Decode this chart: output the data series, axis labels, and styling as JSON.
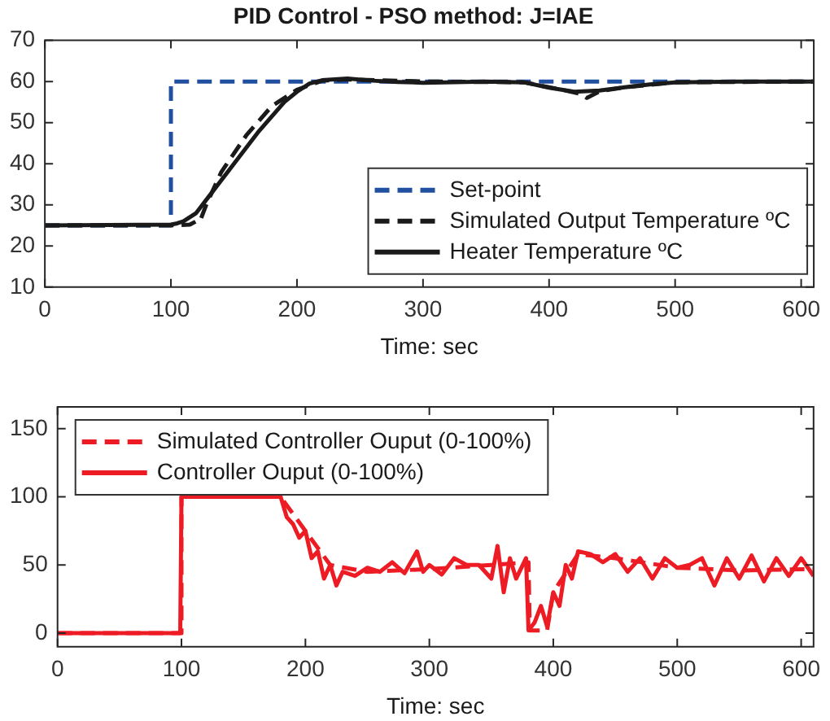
{
  "chart_data": [
    {
      "type": "line",
      "title": "PID Control - PSO method: J=IAE",
      "xlabel": "Time: sec",
      "xlim": [
        0,
        610
      ],
      "xticks": [
        0,
        100,
        200,
        300,
        400,
        500,
        600
      ],
      "ylim": [
        10,
        70
      ],
      "yticks": [
        10,
        20,
        30,
        40,
        50,
        60,
        70
      ],
      "grid": false,
      "legend": "bottom right",
      "series": [
        {
          "name": "Set-point",
          "color": "#2150a0",
          "line_style": "dashed",
          "x": [
            0,
            100,
            100,
            610
          ],
          "values": [
            25,
            25,
            60,
            60
          ]
        },
        {
          "name": "Simulated Output Temperature ºC",
          "color": "#1a1a1a",
          "line_style": "dashed",
          "x": [
            0,
            100,
            115,
            120,
            123,
            128,
            140,
            160,
            180,
            200,
            220,
            240,
            300,
            380,
            410,
            425,
            430,
            440,
            460,
            500,
            610
          ],
          "values": [
            25,
            25,
            25.2,
            26,
            26,
            30,
            38,
            47,
            54,
            58,
            60.2,
            60.5,
            60,
            59.8,
            58,
            57,
            56,
            57.6,
            58.6,
            59.8,
            60
          ]
        },
        {
          "name": "Heater Temperature ºC",
          "color": "#1a1a1a",
          "line_style": "solid",
          "x": [
            0,
            100,
            105,
            110,
            120,
            130,
            150,
            170,
            190,
            200,
            210,
            220,
            240,
            260,
            280,
            300,
            350,
            380,
            400,
            420,
            440,
            460,
            480,
            500,
            550,
            610
          ],
          "values": [
            25,
            25.2,
            25.5,
            26,
            28,
            32,
            40,
            48,
            55,
            57.5,
            59.5,
            60.3,
            60.7,
            60.2,
            59.9,
            59.7,
            60,
            59.8,
            58.5,
            57.5,
            57.8,
            58.6,
            59.3,
            59.8,
            60,
            60
          ]
        }
      ]
    },
    {
      "type": "line",
      "xlabel": "Time: sec",
      "xlim": [
        0,
        610
      ],
      "xticks": [
        0,
        100,
        200,
        300,
        400,
        500,
        600
      ],
      "ylim": [
        -10,
        166
      ],
      "yticks": [
        0,
        50,
        100,
        150
      ],
      "grid": false,
      "legend": "top left",
      "series": [
        {
          "name": "Simulated Controller Ouput (0-100%)",
          "color": "#ed1c24",
          "line_style": "dashed",
          "x": [
            0,
            100,
            100,
            180,
            200,
            220,
            250,
            300,
            350,
            380,
            381,
            395,
            400,
            420,
            450,
            500,
            550,
            610
          ],
          "values": [
            0,
            0,
            100,
            100,
            75,
            50,
            45,
            47,
            50,
            52,
            2,
            2,
            30,
            58,
            55,
            48,
            46,
            47
          ]
        },
        {
          "name": "Controller Ouput (0-100%)",
          "color": "#ed1c24",
          "line_style": "solid",
          "x": [
            0,
            99,
            100,
            180,
            185,
            190,
            195,
            200,
            205,
            210,
            215,
            220,
            225,
            230,
            240,
            250,
            260,
            270,
            280,
            290,
            295,
            300,
            310,
            320,
            330,
            340,
            350,
            355,
            360,
            365,
            370,
            378,
            380,
            385,
            390,
            395,
            400,
            405,
            410,
            415,
            420,
            430,
            440,
            450,
            460,
            470,
            480,
            490,
            500,
            510,
            520,
            530,
            540,
            550,
            560,
            570,
            580,
            590,
            600,
            610
          ],
          "values": [
            0,
            0,
            100,
            100,
            85,
            80,
            70,
            75,
            55,
            60,
            40,
            50,
            35,
            45,
            42,
            48,
            45,
            52,
            44,
            60,
            45,
            50,
            43,
            55,
            50,
            50,
            40,
            64,
            30,
            55,
            40,
            55,
            2,
            8,
            20,
            5,
            30,
            20,
            50,
            40,
            60,
            58,
            52,
            58,
            45,
            55,
            40,
            55,
            48,
            50,
            55,
            35,
            55,
            40,
            57,
            38,
            55,
            42,
            55,
            42
          ]
        }
      ]
    }
  ]
}
